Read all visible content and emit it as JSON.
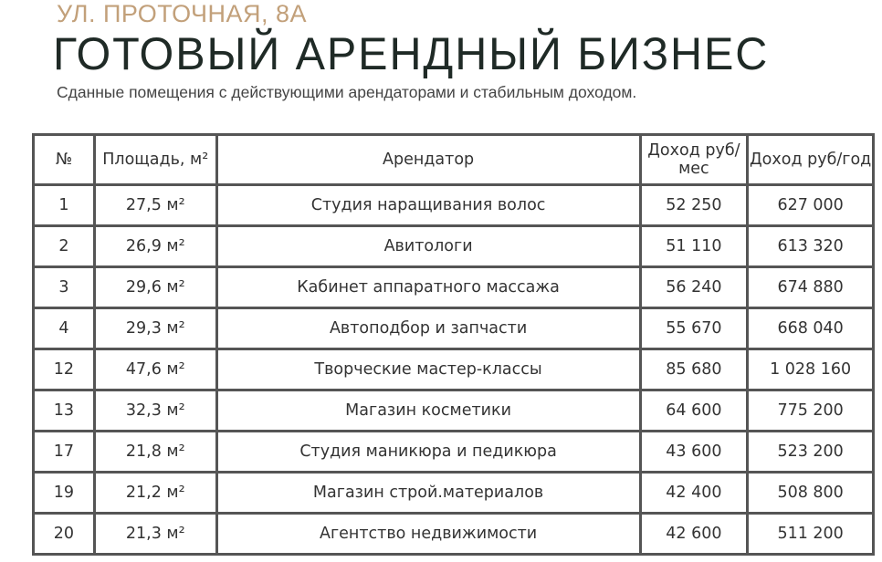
{
  "header": {
    "address": "УЛ. ПРОТОЧНАЯ, 8А",
    "title": "ГОТОВЫЙ АРЕНДНЫЙ БИЗНЕС",
    "subtitle": "Сданные помещения с действующими арендаторами и стабильным доходом."
  },
  "table": {
    "columns": [
      "№",
      "Площадь, м²",
      "Арендатор",
      "Доход руб/мес",
      "Доход руб/год"
    ],
    "rows": [
      [
        "1",
        "27,5 м²",
        "Студия наращивания волос",
        "52 250",
        "627 000"
      ],
      [
        "2",
        "26,9 м²",
        "Авитологи",
        "51 110",
        "613 320"
      ],
      [
        "3",
        "29,6 м²",
        "Кабинет аппаратного массажа",
        "56 240",
        "674 880"
      ],
      [
        "4",
        "29,3 м²",
        "Автоподбор и запчасти",
        "55 670",
        "668 040"
      ],
      [
        "12",
        "47,6 м²",
        "Творческие мастер-классы",
        "85 680",
        "1 028 160"
      ],
      [
        "13",
        "32,3 м²",
        "Магазин косметики",
        "64 600",
        "775 200"
      ],
      [
        "17",
        "21,8 м²",
        "Студия маникюра и педикюра",
        "43 600",
        "523 200"
      ],
      [
        "19",
        "21,2 м²",
        "Магазин строй.материалов",
        "42 400",
        "508 800"
      ],
      [
        "20",
        "21,3 м²",
        "Агентство недвижимости",
        "42 600",
        "511 200"
      ]
    ]
  },
  "colors": {
    "address": "#c2a07a",
    "title": "#1f2a26",
    "border": "#555555"
  }
}
